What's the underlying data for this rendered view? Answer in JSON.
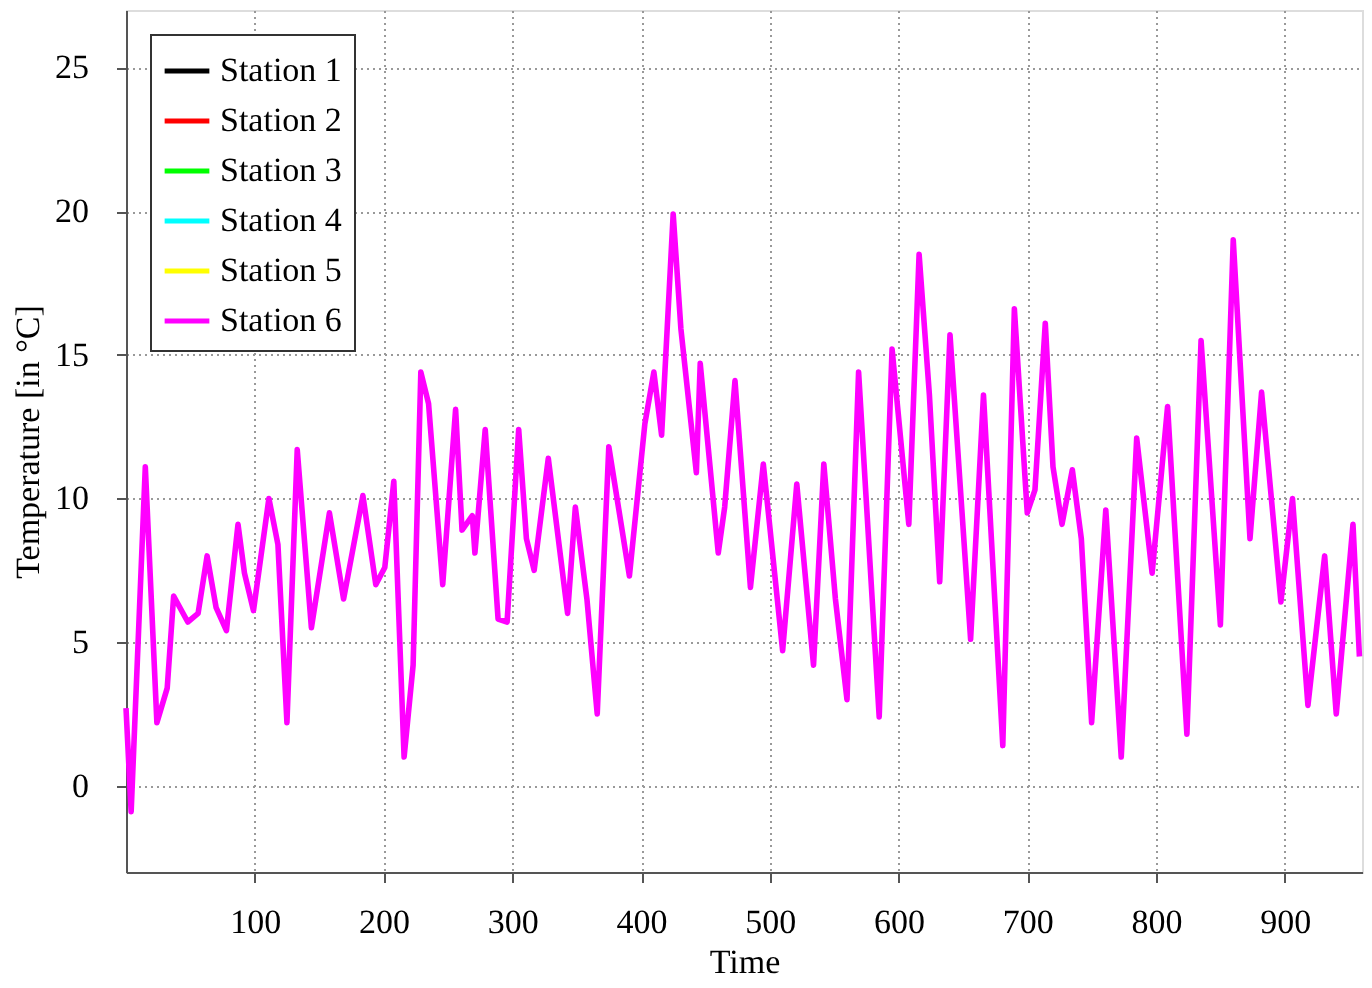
{
  "chart_data": {
    "type": "line",
    "xlabel": "Time",
    "ylabel": "Temperature [in °C]",
    "xlim": [
      0,
      960
    ],
    "ylim": [
      -3,
      27
    ],
    "xticks": [
      100,
      200,
      300,
      400,
      500,
      600,
      700,
      800,
      900
    ],
    "yticks": [
      0,
      5,
      10,
      15,
      20,
      25
    ],
    "grid": true,
    "legend": "top left",
    "line_style": "solid",
    "marker": "none",
    "x": [
      0,
      4,
      15,
      24,
      32,
      37,
      48,
      56,
      63,
      70,
      78,
      87,
      92,
      99,
      111,
      118,
      125,
      133,
      144,
      158,
      169,
      184,
      194,
      201,
      208,
      216,
      223,
      229,
      235,
      246,
      256,
      261,
      269,
      271,
      279,
      289,
      296,
      305,
      311,
      317,
      328,
      343,
      349,
      358,
      366,
      375,
      391,
      403,
      410,
      416,
      425,
      431,
      443,
      446,
      460,
      465,
      473,
      485,
      495,
      510,
      521,
      534,
      542,
      551,
      560,
      569,
      585,
      595,
      608,
      616,
      624,
      632,
      640,
      656,
      666,
      681,
      690,
      700,
      706,
      714,
      720,
      727,
      735,
      742,
      750,
      761,
      773,
      785,
      797,
      809,
      824,
      835,
      850,
      860,
      873,
      882,
      897,
      906,
      918,
      931,
      940,
      953,
      958
    ],
    "series": [
      {
        "name": "Station 1",
        "color": "#000000",
        "values": [
          null,
          null,
          null,
          null,
          null,
          null,
          null,
          null,
          null,
          null,
          null,
          null,
          null,
          null,
          null,
          null,
          null,
          null,
          null,
          null,
          null,
          null,
          null,
          null,
          null,
          null,
          null,
          null,
          null,
          null,
          null,
          null,
          null,
          null,
          null,
          null,
          null,
          null,
          null,
          null,
          null,
          null,
          null,
          null,
          null,
          null,
          null,
          null,
          null,
          null,
          null,
          null,
          null,
          null,
          null,
          null,
          null,
          null,
          null,
          null,
          null,
          null,
          null,
          null,
          null,
          null,
          null,
          null,
          null,
          null,
          null,
          null,
          null,
          null,
          null,
          null,
          null,
          null,
          null,
          null,
          null,
          null,
          null,
          null,
          null,
          null,
          null,
          null,
          null,
          null,
          null,
          null,
          null,
          null,
          null,
          null,
          null,
          null,
          null,
          null,
          null,
          null,
          null
        ]
      },
      {
        "name": "Station 2",
        "color": "#ff0000",
        "values": [
          null,
          null,
          null,
          null,
          null,
          null,
          null,
          null,
          null,
          null,
          null,
          null,
          null,
          null,
          null,
          null,
          null,
          null,
          null,
          null,
          null,
          null,
          null,
          null,
          null,
          null,
          null,
          null,
          null,
          null,
          null,
          null,
          null,
          null,
          null,
          null,
          null,
          null,
          null,
          null,
          null,
          null,
          null,
          null,
          null,
          null,
          null,
          null,
          null,
          null,
          null,
          null,
          null,
          null,
          null,
          null,
          null,
          null,
          null,
          null,
          null,
          null,
          null,
          null,
          null,
          null,
          null,
          null,
          null,
          null,
          null,
          null,
          null,
          null,
          null,
          null,
          null,
          null,
          null,
          null,
          null,
          null,
          null,
          null,
          null,
          null,
          null,
          null,
          null,
          null,
          null,
          null,
          null,
          null,
          null,
          null,
          null,
          null,
          null,
          null,
          null,
          null,
          null
        ]
      },
      {
        "name": "Station 3",
        "color": "#00ff00",
        "values": [
          null,
          null,
          null,
          null,
          null,
          null,
          null,
          null,
          null,
          null,
          null,
          null,
          null,
          null,
          null,
          null,
          null,
          null,
          null,
          null,
          null,
          null,
          null,
          null,
          null,
          null,
          null,
          null,
          null,
          null,
          null,
          null,
          null,
          null,
          null,
          null,
          null,
          null,
          null,
          null,
          null,
          null,
          null,
          null,
          null,
          null,
          null,
          null,
          null,
          null,
          null,
          null,
          null,
          null,
          null,
          null,
          null,
          null,
          null,
          null,
          null,
          null,
          null,
          null,
          null,
          null,
          null,
          null,
          null,
          null,
          null,
          null,
          null,
          null,
          null,
          null,
          null,
          null,
          null,
          null,
          null,
          null,
          null,
          null,
          null,
          null,
          null,
          null,
          null,
          null,
          null,
          null,
          null,
          null,
          null,
          null,
          null,
          null,
          null,
          null,
          null,
          null,
          null
        ]
      },
      {
        "name": "Station 4",
        "color": "#00ffff",
        "values": [
          null,
          null,
          null,
          null,
          null,
          null,
          null,
          null,
          null,
          null,
          null,
          null,
          null,
          null,
          null,
          null,
          null,
          null,
          null,
          null,
          null,
          null,
          null,
          null,
          null,
          null,
          null,
          null,
          null,
          null,
          null,
          null,
          null,
          null,
          null,
          null,
          null,
          null,
          null,
          null,
          null,
          null,
          null,
          null,
          null,
          null,
          null,
          null,
          null,
          null,
          null,
          null,
          null,
          null,
          null,
          null,
          null,
          null,
          null,
          null,
          null,
          null,
          null,
          null,
          null,
          null,
          null,
          null,
          null,
          null,
          null,
          null,
          null,
          null,
          null,
          null,
          null,
          null,
          null,
          null,
          null,
          null,
          null,
          null,
          null,
          null,
          null,
          null,
          null,
          null,
          null,
          null,
          null,
          null,
          null,
          null,
          null,
          null,
          null,
          null,
          null,
          null,
          null
        ]
      },
      {
        "name": "Station 5",
        "color": "#ffff00",
        "values": [
          null,
          null,
          null,
          null,
          null,
          null,
          null,
          null,
          null,
          null,
          null,
          null,
          null,
          null,
          null,
          null,
          null,
          null,
          null,
          null,
          null,
          null,
          null,
          null,
          null,
          null,
          null,
          null,
          null,
          null,
          null,
          null,
          null,
          null,
          null,
          null,
          null,
          null,
          null,
          null,
          null,
          null,
          null,
          null,
          null,
          null,
          null,
          null,
          null,
          null,
          null,
          null,
          null,
          null,
          null,
          null,
          null,
          null,
          null,
          null,
          null,
          null,
          null,
          null,
          null,
          null,
          null,
          null,
          null,
          null,
          null,
          null,
          null,
          null,
          null,
          null,
          null,
          null,
          null,
          null,
          null,
          null,
          null,
          null,
          null,
          null,
          null,
          null,
          null,
          null,
          null,
          null,
          null,
          null,
          null,
          null,
          null,
          null,
          null,
          null,
          null,
          null,
          null
        ]
      },
      {
        "name": "Station 6",
        "color": "#ff00ff",
        "values": [
          2.7,
          -0.9,
          11.1,
          2.2,
          3.4,
          6.6,
          5.7,
          6.0,
          8.0,
          6.2,
          5.4,
          9.1,
          7.4,
          6.1,
          10.0,
          8.4,
          2.2,
          11.7,
          5.5,
          9.5,
          6.5,
          10.1,
          7.0,
          7.6,
          10.6,
          1.0,
          4.2,
          14.4,
          13.3,
          7.0,
          13.1,
          8.9,
          9.4,
          8.1,
          12.4,
          5.8,
          5.7,
          12.4,
          8.6,
          7.5,
          11.4,
          6.0,
          9.7,
          6.5,
          2.5,
          11.8,
          7.3,
          12.6,
          14.4,
          12.2,
          19.9,
          15.9,
          10.9,
          14.7,
          8.1,
          9.7,
          14.1,
          6.9,
          11.2,
          4.7,
          10.5,
          4.2,
          11.2,
          6.5,
          3.0,
          14.4,
          2.4,
          15.2,
          9.1,
          18.5,
          13.6,
          7.1,
          15.7,
          5.1,
          13.6,
          1.4,
          16.6,
          9.5,
          10.3,
          16.1,
          11.1,
          9.1,
          11.0,
          8.6,
          2.2,
          9.6,
          1.0,
          12.1,
          7.4,
          13.2,
          1.8,
          15.5,
          5.6,
          19.0,
          8.6,
          13.7,
          6.4,
          10.0,
          2.8,
          8.0,
          2.5,
          9.1,
          4.5
        ]
      }
    ]
  }
}
